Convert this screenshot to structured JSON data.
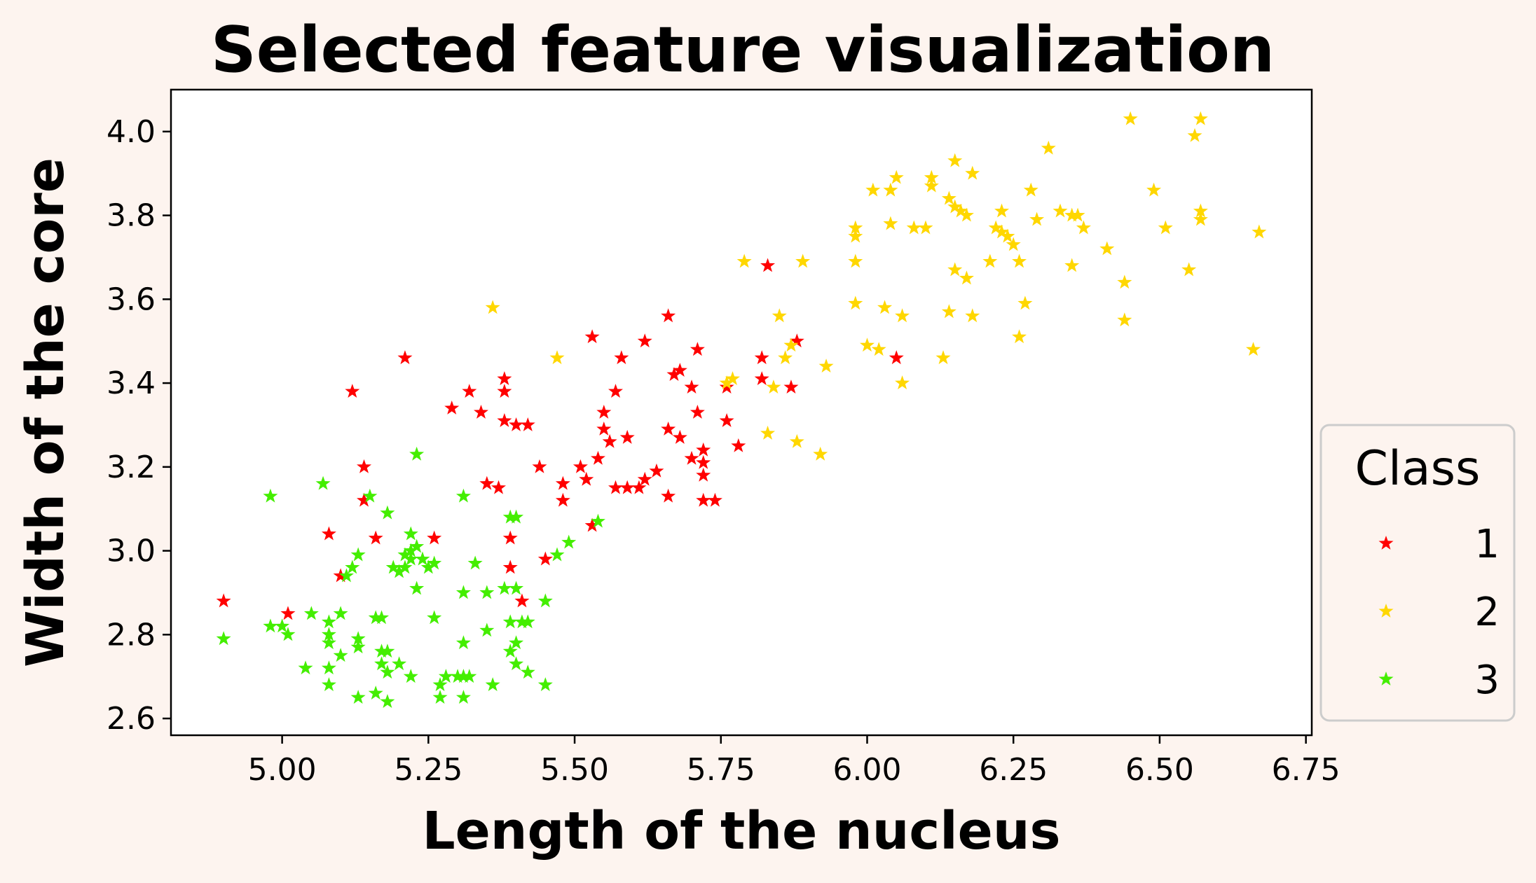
{
  "chart_data": {
    "type": "scatter",
    "title": "Selected feature visualization",
    "xlabel": "Length of the nucleus",
    "ylabel": "Width of the core",
    "xlim": [
      4.81,
      6.76
    ],
    "ylim": [
      2.56,
      4.1
    ],
    "x_ticks": [
      "5.00",
      "5.25",
      "5.50",
      "5.75",
      "6.00",
      "6.25",
      "6.50",
      "6.75"
    ],
    "y_ticks": [
      "2.6",
      "2.8",
      "3.0",
      "3.2",
      "3.4",
      "3.6",
      "3.8",
      "4.0"
    ],
    "grid": false,
    "marker": "star",
    "legend": {
      "title": "Class",
      "placement": "outside-right"
    },
    "series": [
      {
        "name": "1",
        "color": "#ff0000",
        "points": [
          [
            4.9,
            2.88
          ],
          [
            5.01,
            2.85
          ],
          [
            5.08,
            3.04
          ],
          [
            5.1,
            2.94
          ],
          [
            5.12,
            3.38
          ],
          [
            5.14,
            3.2
          ],
          [
            5.14,
            3.12
          ],
          [
            5.16,
            3.03
          ],
          [
            5.21,
            3.46
          ],
          [
            5.26,
            3.03
          ],
          [
            5.29,
            3.34
          ],
          [
            5.32,
            3.38
          ],
          [
            5.34,
            3.33
          ],
          [
            5.35,
            3.16
          ],
          [
            5.37,
            3.15
          ],
          [
            5.38,
            3.41
          ],
          [
            5.38,
            3.38
          ],
          [
            5.38,
            3.31
          ],
          [
            5.4,
            3.3
          ],
          [
            5.42,
            3.3
          ],
          [
            5.39,
            3.03
          ],
          [
            5.39,
            2.96
          ],
          [
            5.41,
            2.88
          ],
          [
            5.44,
            3.2
          ],
          [
            5.45,
            2.98
          ],
          [
            5.48,
            3.16
          ],
          [
            5.48,
            3.12
          ],
          [
            5.51,
            3.2
          ],
          [
            5.52,
            3.17
          ],
          [
            5.53,
            3.51
          ],
          [
            5.53,
            3.06
          ],
          [
            5.54,
            3.22
          ],
          [
            5.55,
            3.29
          ],
          [
            5.55,
            3.33
          ],
          [
            5.56,
            3.26
          ],
          [
            5.57,
            3.38
          ],
          [
            5.57,
            3.15
          ],
          [
            5.58,
            3.46
          ],
          [
            5.59,
            3.27
          ],
          [
            5.59,
            3.15
          ],
          [
            5.61,
            3.15
          ],
          [
            5.62,
            3.5
          ],
          [
            5.62,
            3.17
          ],
          [
            5.64,
            3.19
          ],
          [
            5.66,
            3.56
          ],
          [
            5.66,
            3.29
          ],
          [
            5.66,
            3.13
          ],
          [
            5.67,
            3.42
          ],
          [
            5.68,
            3.43
          ],
          [
            5.68,
            3.27
          ],
          [
            5.7,
            3.39
          ],
          [
            5.7,
            3.22
          ],
          [
            5.71,
            3.48
          ],
          [
            5.71,
            3.33
          ],
          [
            5.72,
            3.24
          ],
          [
            5.72,
            3.21
          ],
          [
            5.72,
            3.18
          ],
          [
            5.72,
            3.12
          ],
          [
            5.74,
            3.12
          ],
          [
            5.76,
            3.39
          ],
          [
            5.76,
            3.31
          ],
          [
            5.78,
            3.25
          ],
          [
            5.83,
            3.68
          ],
          [
            5.82,
            3.46
          ],
          [
            5.82,
            3.41
          ],
          [
            5.87,
            3.39
          ],
          [
            5.88,
            3.5
          ],
          [
            6.05,
            3.46
          ]
        ]
      },
      {
        "name": "2",
        "color": "#ffd700",
        "points": [
          [
            5.36,
            3.58
          ],
          [
            5.47,
            3.46
          ],
          [
            5.76,
            3.4
          ],
          [
            5.77,
            3.41
          ],
          [
            5.79,
            3.69
          ],
          [
            5.83,
            3.28
          ],
          [
            5.84,
            3.39
          ],
          [
            5.85,
            3.56
          ],
          [
            5.86,
            3.46
          ],
          [
            5.87,
            3.49
          ],
          [
            5.88,
            3.26
          ],
          [
            5.89,
            3.69
          ],
          [
            5.92,
            3.23
          ],
          [
            5.93,
            3.44
          ],
          [
            5.98,
            3.77
          ],
          [
            5.98,
            3.75
          ],
          [
            5.98,
            3.69
          ],
          [
            5.98,
            3.59
          ],
          [
            6.0,
            3.49
          ],
          [
            6.01,
            3.86
          ],
          [
            6.02,
            3.48
          ],
          [
            6.03,
            3.58
          ],
          [
            6.04,
            3.86
          ],
          [
            6.04,
            3.78
          ],
          [
            6.05,
            3.89
          ],
          [
            6.06,
            3.56
          ],
          [
            6.06,
            3.4
          ],
          [
            6.08,
            3.77
          ],
          [
            6.1,
            3.77
          ],
          [
            6.11,
            3.89
          ],
          [
            6.11,
            3.87
          ],
          [
            6.13,
            3.46
          ],
          [
            6.14,
            3.84
          ],
          [
            6.14,
            3.57
          ],
          [
            6.15,
            3.93
          ],
          [
            6.15,
            3.82
          ],
          [
            6.15,
            3.67
          ],
          [
            6.16,
            3.81
          ],
          [
            6.17,
            3.8
          ],
          [
            6.17,
            3.65
          ],
          [
            6.18,
            3.9
          ],
          [
            6.18,
            3.56
          ],
          [
            6.21,
            3.69
          ],
          [
            6.22,
            3.77
          ],
          [
            6.23,
            3.81
          ],
          [
            6.23,
            3.76
          ],
          [
            6.24,
            3.75
          ],
          [
            6.25,
            3.73
          ],
          [
            6.26,
            3.69
          ],
          [
            6.26,
            3.51
          ],
          [
            6.27,
            3.59
          ],
          [
            6.28,
            3.86
          ],
          [
            6.29,
            3.79
          ],
          [
            6.31,
            3.96
          ],
          [
            6.33,
            3.81
          ],
          [
            6.35,
            3.8
          ],
          [
            6.35,
            3.68
          ],
          [
            6.36,
            3.8
          ],
          [
            6.37,
            3.77
          ],
          [
            6.41,
            3.72
          ],
          [
            6.44,
            3.64
          ],
          [
            6.44,
            3.55
          ],
          [
            6.45,
            4.03
          ],
          [
            6.49,
            3.86
          ],
          [
            6.51,
            3.77
          ],
          [
            6.55,
            3.67
          ],
          [
            6.56,
            3.99
          ],
          [
            6.57,
            4.03
          ],
          [
            6.57,
            3.81
          ],
          [
            6.57,
            3.79
          ],
          [
            6.66,
            3.48
          ],
          [
            6.67,
            3.76
          ]
        ]
      },
      {
        "name": "3",
        "color": "#44ee00",
        "points": [
          [
            4.9,
            2.79
          ],
          [
            4.98,
            3.13
          ],
          [
            4.98,
            2.82
          ],
          [
            5.0,
            2.82
          ],
          [
            5.01,
            2.8
          ],
          [
            5.04,
            2.72
          ],
          [
            5.05,
            2.85
          ],
          [
            5.07,
            3.16
          ],
          [
            5.08,
            2.83
          ],
          [
            5.08,
            2.8
          ],
          [
            5.08,
            2.78
          ],
          [
            5.08,
            2.72
          ],
          [
            5.08,
            2.68
          ],
          [
            5.1,
            2.85
          ],
          [
            5.1,
            2.75
          ],
          [
            5.11,
            2.94
          ],
          [
            5.12,
            2.96
          ],
          [
            5.13,
            2.99
          ],
          [
            5.13,
            2.79
          ],
          [
            5.13,
            2.77
          ],
          [
            5.13,
            2.65
          ],
          [
            5.15,
            3.13
          ],
          [
            5.16,
            2.84
          ],
          [
            5.16,
            2.66
          ],
          [
            5.17,
            2.84
          ],
          [
            5.17,
            2.76
          ],
          [
            5.17,
            2.73
          ],
          [
            5.18,
            3.09
          ],
          [
            5.18,
            2.76
          ],
          [
            5.18,
            2.71
          ],
          [
            5.18,
            2.64
          ],
          [
            5.19,
            2.96
          ],
          [
            5.2,
            2.95
          ],
          [
            5.2,
            2.73
          ],
          [
            5.21,
            2.96
          ],
          [
            5.21,
            2.99
          ],
          [
            5.22,
            3.04
          ],
          [
            5.22,
            3.0
          ],
          [
            5.22,
            2.98
          ],
          [
            5.22,
            2.7
          ],
          [
            5.23,
            3.23
          ],
          [
            5.23,
            3.01
          ],
          [
            5.23,
            2.91
          ],
          [
            5.24,
            2.98
          ],
          [
            5.25,
            2.96
          ],
          [
            5.26,
            2.84
          ],
          [
            5.26,
            2.97
          ],
          [
            5.27,
            2.68
          ],
          [
            5.27,
            2.65
          ],
          [
            5.28,
            2.7
          ],
          [
            5.3,
            2.7
          ],
          [
            5.31,
            3.13
          ],
          [
            5.31,
            2.9
          ],
          [
            5.31,
            2.78
          ],
          [
            5.31,
            2.7
          ],
          [
            5.31,
            2.65
          ],
          [
            5.32,
            2.7
          ],
          [
            5.33,
            2.97
          ],
          [
            5.35,
            2.9
          ],
          [
            5.35,
            2.81
          ],
          [
            5.36,
            2.68
          ],
          [
            5.38,
            2.91
          ],
          [
            5.39,
            3.08
          ],
          [
            5.39,
            2.83
          ],
          [
            5.39,
            2.76
          ],
          [
            5.4,
            3.08
          ],
          [
            5.4,
            2.91
          ],
          [
            5.4,
            2.78
          ],
          [
            5.4,
            2.73
          ],
          [
            5.41,
            2.83
          ],
          [
            5.42,
            2.71
          ],
          [
            5.42,
            2.83
          ],
          [
            5.45,
            2.88
          ],
          [
            5.45,
            2.68
          ],
          [
            5.47,
            2.99
          ],
          [
            5.49,
            3.02
          ],
          [
            5.54,
            3.07
          ]
        ]
      }
    ]
  }
}
